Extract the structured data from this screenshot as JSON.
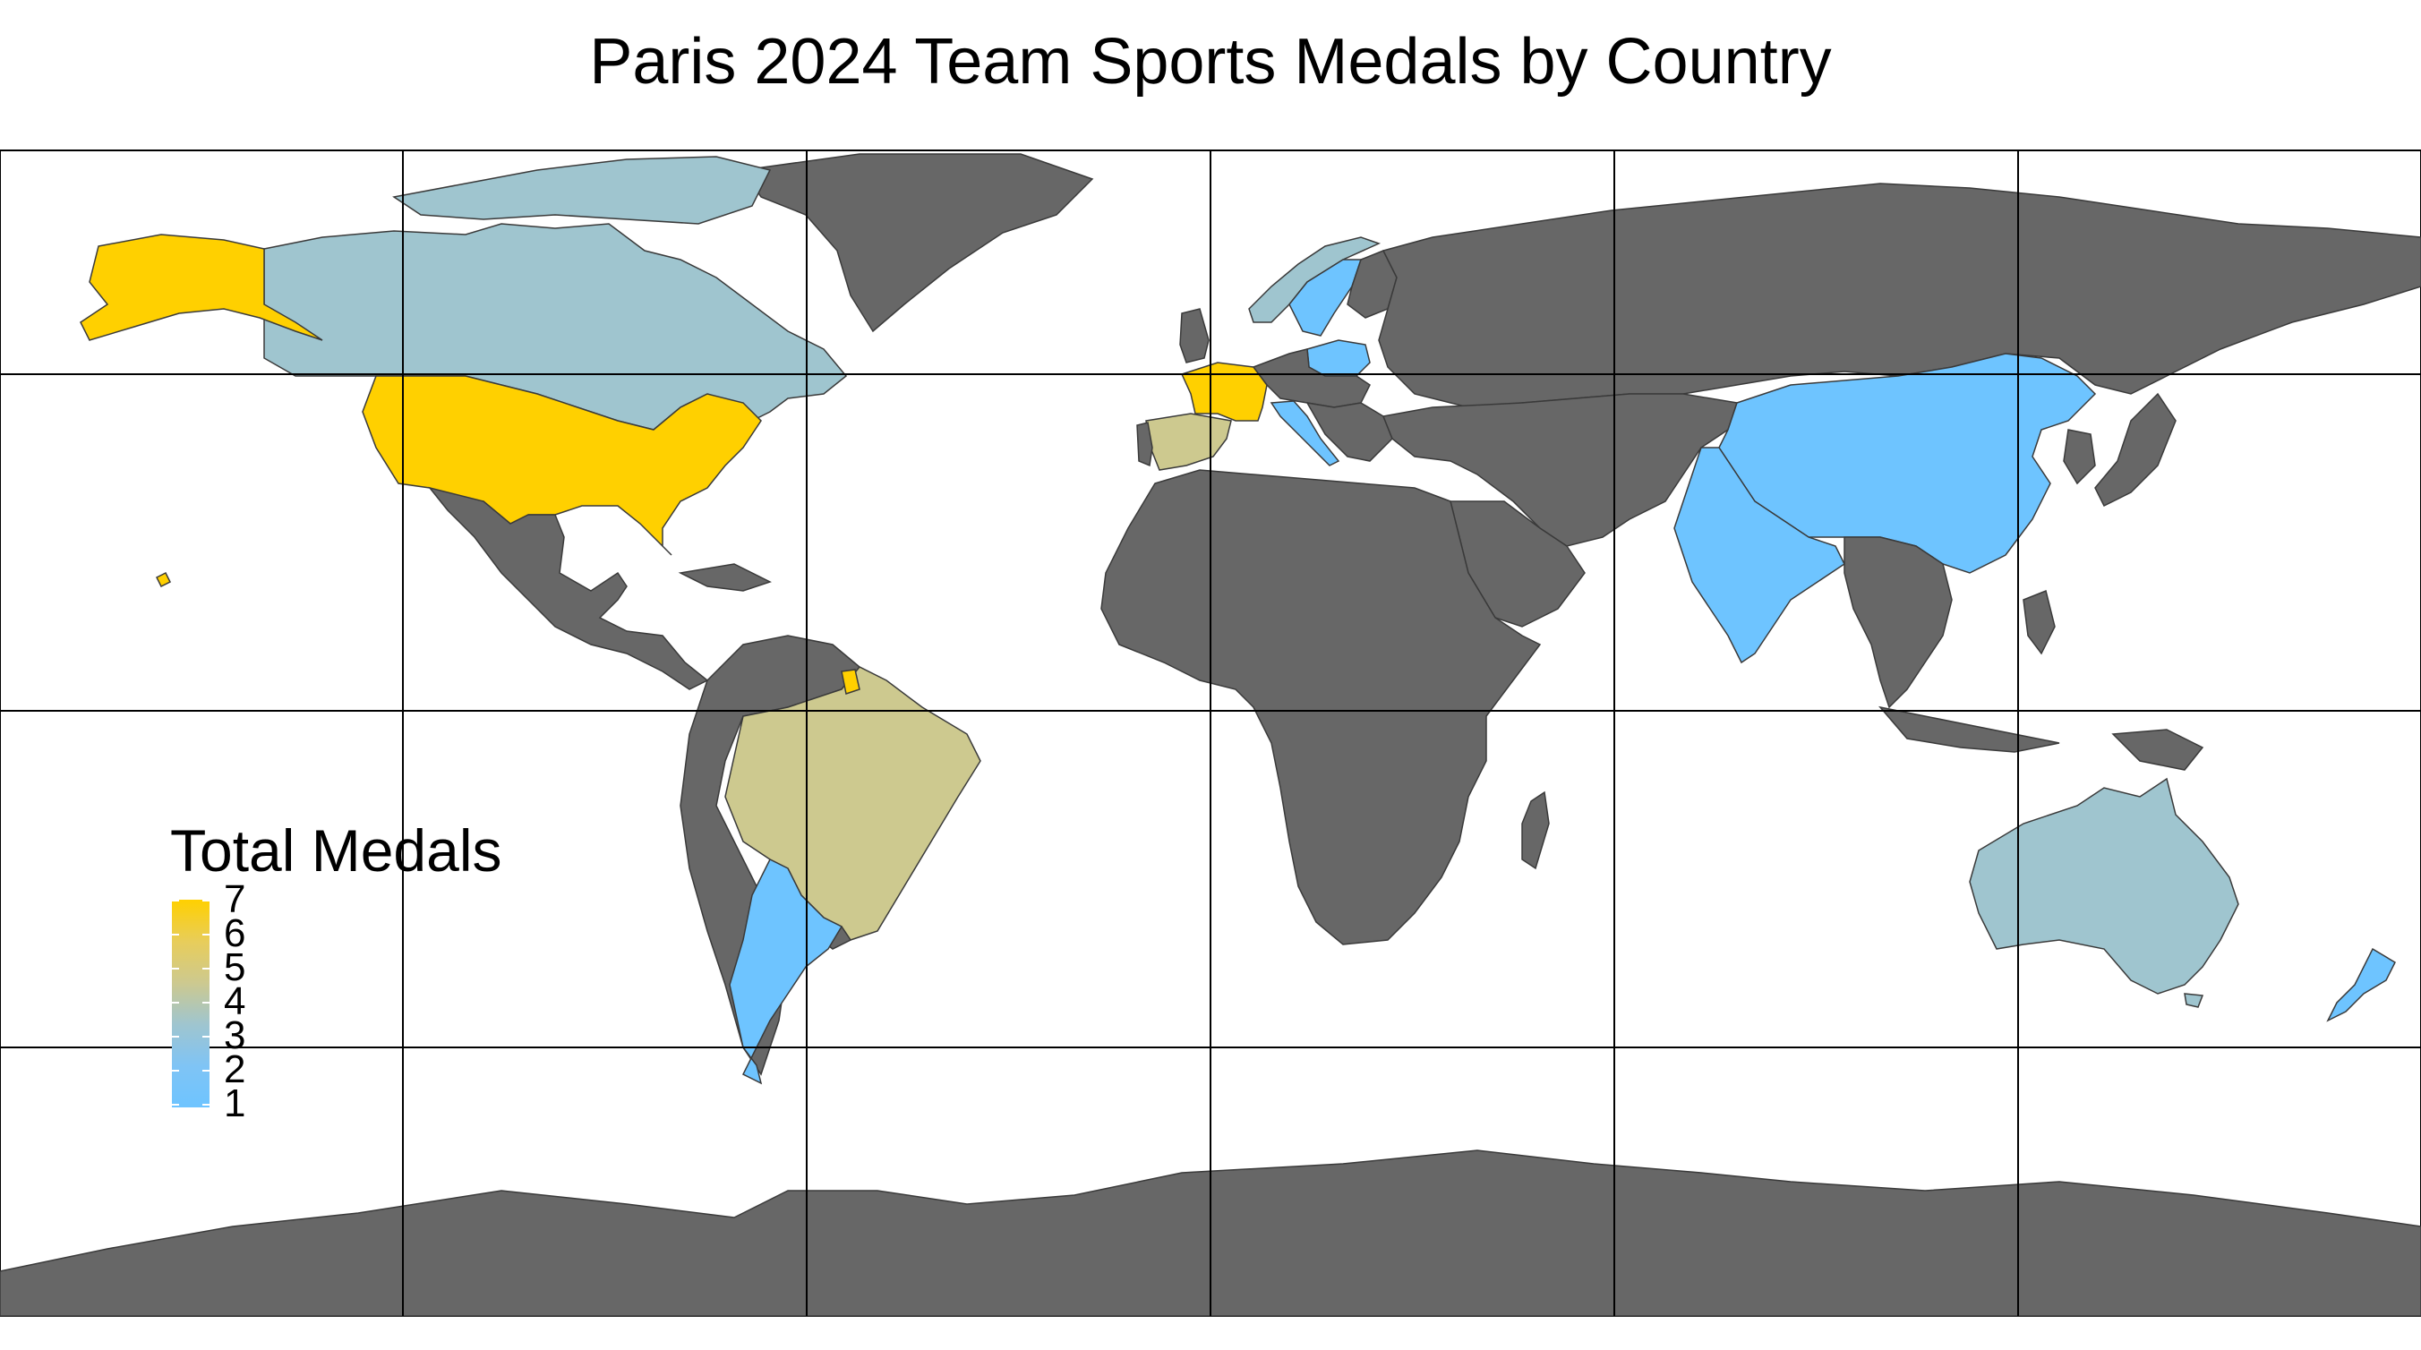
{
  "title": "Paris 2024 Team Sports Medals by Country",
  "legend": {
    "title": "Total Medals",
    "min": 1,
    "max": 7,
    "labels": [
      "7",
      "6",
      "5",
      "4",
      "3",
      "2",
      "1"
    ],
    "gradient_colors": [
      "#ffd000",
      "#e8cd5a",
      "#cdc98f",
      "#9fc5cf",
      "#7fc4f5",
      "#6ec4ff"
    ]
  },
  "colors": {
    "no_medal": "#676767",
    "border": "#3a3a3a",
    "graticule": "#000000",
    "ocean": "#ffffff"
  },
  "countries": [
    {
      "name": "United States",
      "medals": 7
    },
    {
      "name": "France",
      "medals": 7
    },
    {
      "name": "Spain",
      "medals": 5
    },
    {
      "name": "Brazil",
      "medals": 5
    },
    {
      "name": "Canada",
      "medals": 3
    },
    {
      "name": "Australia",
      "medals": 3
    },
    {
      "name": "Norway",
      "medals": 3
    },
    {
      "name": "Sweden",
      "medals": 1
    },
    {
      "name": "Poland",
      "medals": 1
    },
    {
      "name": "Italy",
      "medals": 1
    },
    {
      "name": "Argentina",
      "medals": 1
    },
    {
      "name": "China",
      "medals": 1
    },
    {
      "name": "India",
      "medals": 1
    },
    {
      "name": "New Zealand",
      "medals": 1
    }
  ]
}
